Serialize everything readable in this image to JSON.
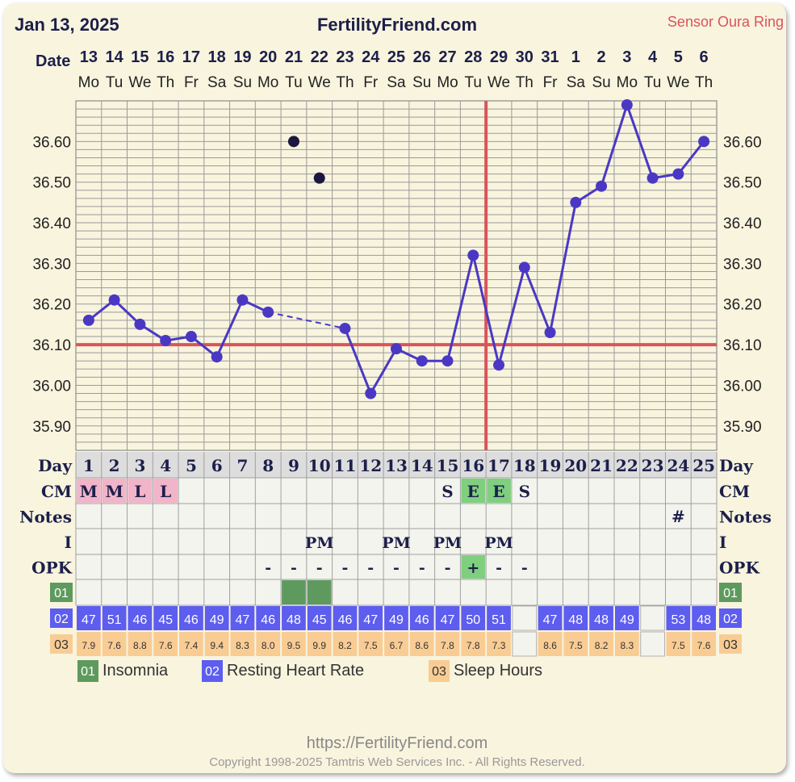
{
  "header": {
    "date": "Jan 13, 2025",
    "site": "FertilityFriend.com",
    "sensor": "Sensor Oura Ring"
  },
  "labels": {
    "date": "Date",
    "day": "Day",
    "cm": "CM",
    "notes": "Notes",
    "intercourse": "I",
    "opk": "OPK"
  },
  "footer": {
    "url": "https://FertilityFriend.com",
    "copyright": "Copyright 1998-2025 Tamtris Web Services Inc. - All Rights Reserved."
  },
  "colors": {
    "background": "#f8f4de",
    "line": "#4a38c4",
    "coverline": "#d9545c",
    "insomnia": "#5e9a5e",
    "heart_rate": "#5d5df0",
    "sleep_hours": "#f9cc94",
    "cm_menses": "#f2b4c8",
    "cm_eggwhite": "#7fcf7f"
  },
  "chart_data": {
    "type": "line",
    "dates": [
      "13",
      "14",
      "15",
      "16",
      "17",
      "18",
      "19",
      "20",
      "21",
      "22",
      "23",
      "24",
      "25",
      "26",
      "27",
      "28",
      "29",
      "30",
      "31",
      "1",
      "2",
      "3",
      "4",
      "5",
      "6"
    ],
    "weekdays": [
      "Mo",
      "Tu",
      "We",
      "Th",
      "Fr",
      "Sa",
      "Su",
      "Mo",
      "Tu",
      "We",
      "Th",
      "Fr",
      "Sa",
      "Su",
      "Mo",
      "Tu",
      "We",
      "Th",
      "Fr",
      "Sa",
      "Su",
      "Mo",
      "Tu",
      "We",
      "Th"
    ],
    "cycle_days": [
      "1",
      "2",
      "3",
      "4",
      "5",
      "6",
      "7",
      "8",
      "9",
      "10",
      "11",
      "12",
      "13",
      "14",
      "15",
      "16",
      "17",
      "18",
      "19",
      "20",
      "21",
      "22",
      "23",
      "24",
      "25"
    ],
    "y_ticks": [
      "36.60",
      "36.50",
      "36.40",
      "36.30",
      "36.20",
      "36.10",
      "36.00",
      "35.90"
    ],
    "ylim": [
      35.84,
      36.7
    ],
    "series": [
      {
        "temps": [
          36.16,
          36.21,
          36.15,
          36.11,
          36.12,
          36.07,
          36.21,
          36.18,
          null,
          null,
          36.14,
          35.98,
          36.09,
          36.06,
          36.06,
          36.32,
          36.05,
          36.29,
          36.13,
          36.45,
          36.49,
          36.69,
          36.51,
          36.52,
          36.6
        ],
        "dashed_segment": [
          7,
          10
        ]
      },
      {
        "discarded_points": [
          {
            "day": 9,
            "temp": 36.6
          },
          {
            "day": 10,
            "temp": 36.51
          }
        ]
      }
    ],
    "coverline": 36.1,
    "ovulation_day": 17,
    "grid": true,
    "cm": [
      "M",
      "M",
      "L",
      "L",
      "",
      "",
      "",
      "",
      "",
      "",
      "",
      "",
      "",
      "",
      "S",
      "E",
      "E",
      "S",
      "",
      "",
      "",
      "",
      "",
      "",
      ""
    ],
    "notes": [
      "",
      "",
      "",
      "",
      "",
      "",
      "",
      "",
      "",
      "",
      "",
      "",
      "",
      "",
      "",
      "",
      "",
      "",
      "",
      "",
      "",
      "",
      "",
      "#",
      ""
    ],
    "intercourse": [
      "",
      "",
      "",
      "",
      "",
      "",
      "",
      "",
      "",
      "PM",
      "",
      "",
      "PM",
      "",
      "PM",
      "",
      "PM",
      "",
      "",
      "",
      "",
      "",
      "",
      "",
      ""
    ],
    "opk": [
      "",
      "",
      "",
      "",
      "",
      "",
      "",
      "-",
      "-",
      "-",
      "-",
      "-",
      "-",
      "-",
      "-",
      "+",
      "-",
      "-",
      "",
      "",
      "",
      "",
      "",
      "",
      ""
    ],
    "insomnia": [
      false,
      false,
      false,
      false,
      false,
      false,
      false,
      false,
      true,
      true,
      false,
      false,
      false,
      false,
      false,
      false,
      false,
      false,
      false,
      false,
      false,
      false,
      false,
      false,
      false
    ],
    "resting_heart_rate": [
      "47",
      "51",
      "46",
      "45",
      "46",
      "49",
      "47",
      "46",
      "48",
      "45",
      "46",
      "47",
      "49",
      "46",
      "47",
      "50",
      "51",
      "",
      "47",
      "48",
      "48",
      "49",
      "",
      "53",
      "48"
    ],
    "sleep_hours": [
      "7.9",
      "7.6",
      "8.8",
      "7.6",
      "7.4",
      "9.4",
      "8.3",
      "8.0",
      "9.5",
      "9.9",
      "8.2",
      "7.5",
      "6.7",
      "8.6",
      "7.8",
      "7.8",
      "7.3",
      "",
      "8.6",
      "7.5",
      "8.2",
      "8.3",
      "",
      "7.5",
      "7.6"
    ],
    "custom_rows": [
      {
        "code": "01",
        "name": "Insomnia"
      },
      {
        "code": "02",
        "name": "Resting Heart Rate"
      },
      {
        "code": "03",
        "name": "Sleep Hours"
      }
    ]
  }
}
